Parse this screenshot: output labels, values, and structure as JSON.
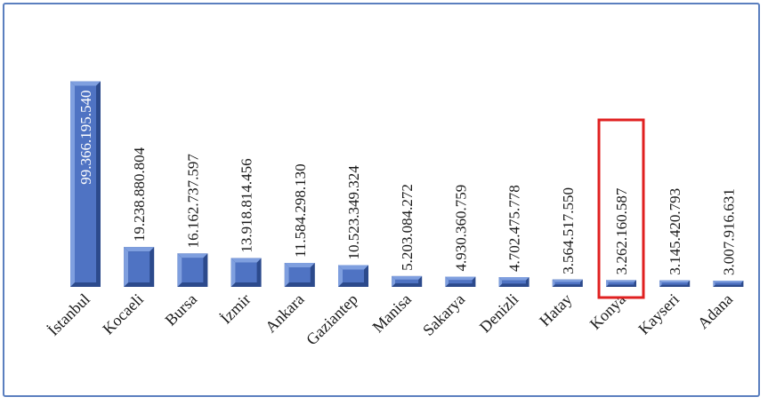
{
  "chart_data": {
    "type": "bar",
    "categories": [
      "İstanbul",
      "Kocaeli",
      "Bursa",
      "İzmir",
      "Ankara",
      "Gaziantep",
      "Manisa",
      "Sakarya",
      "Denizli",
      "Hatay",
      "Konya",
      "Kayseri",
      "Adana"
    ],
    "values": [
      99366195540,
      19238880804,
      16162737597,
      13918814456,
      11584298130,
      10523349324,
      5203084272,
      4930360759,
      4702475778,
      3564517550,
      3262160587,
      3145420793,
      3007916631
    ],
    "value_labels": [
      "99.366.195.540",
      "19.238.880.804",
      "16.162.737.597",
      "13.918.814.456",
      "11.584.298.130",
      "10.523.349.324",
      "5.203.084.272",
      "4.930.360.759",
      "4.702.475.778",
      "3.564.517.550",
      "3.262.160.587",
      "3.145.420.793",
      "3.007.916.631"
    ],
    "highlighted_category": "Konya",
    "title": "",
    "xlabel": "",
    "ylabel": "",
    "ylim": [
      0,
      100000000000
    ],
    "grid": false,
    "legend": "none"
  },
  "colors": {
    "bar": "#4f73c3",
    "bar_dark": "#2c4a8c",
    "bar_light": "#7f9fdf",
    "highlight_border": "#e02020",
    "frame_border": "#5b7fbf"
  }
}
